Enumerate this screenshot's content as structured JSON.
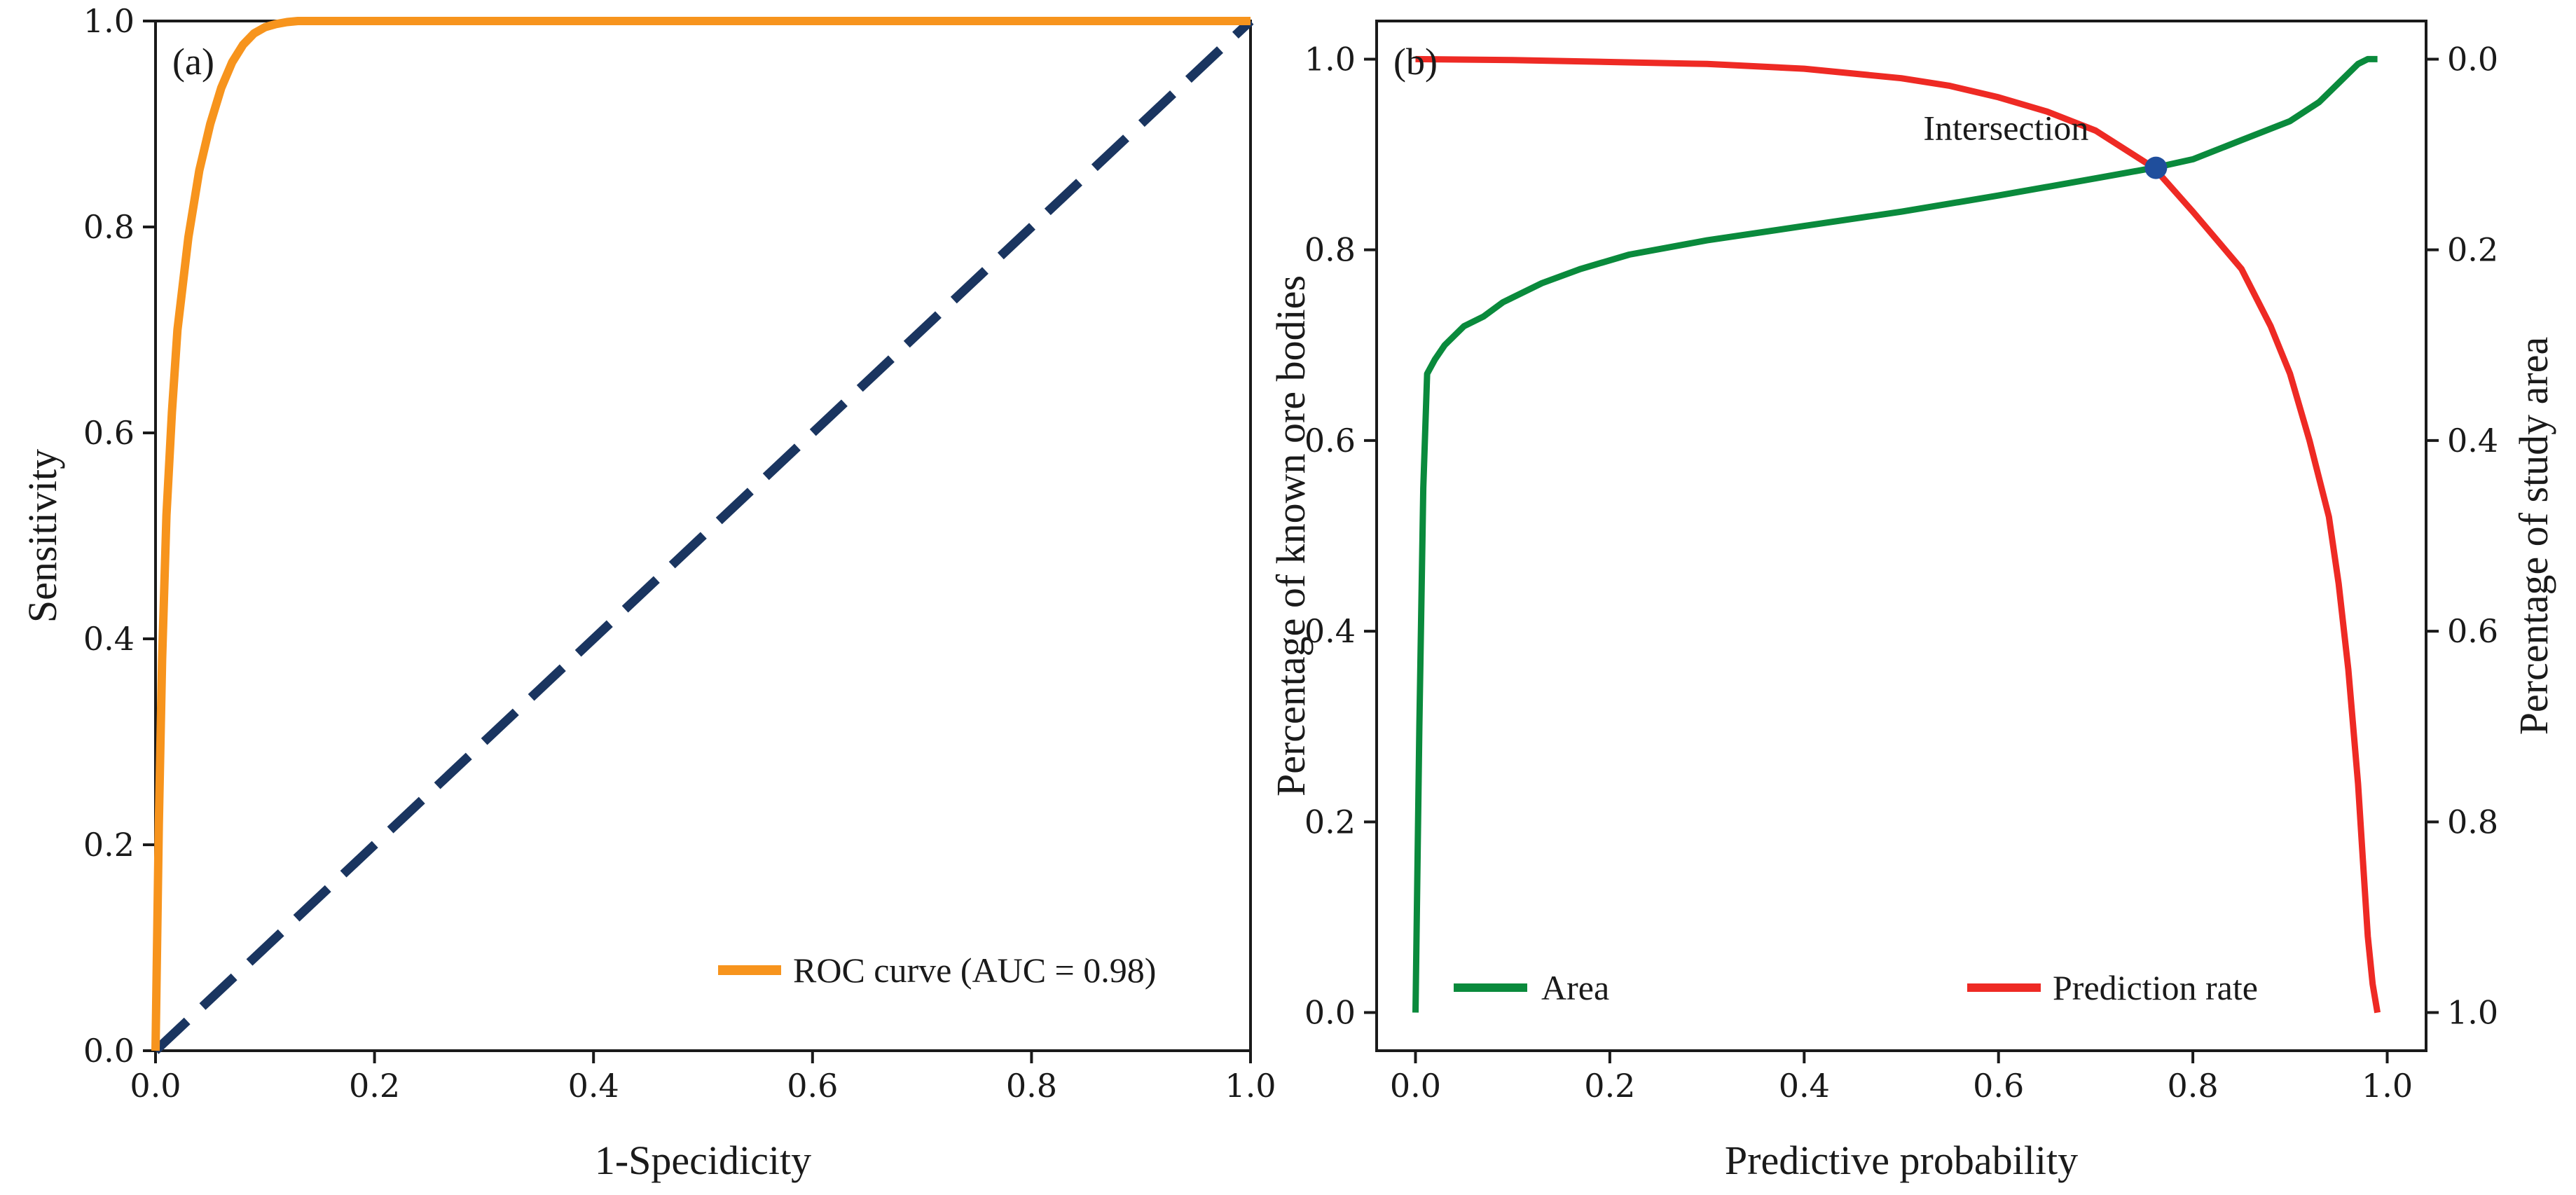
{
  "chart_data": [
    {
      "type": "line",
      "panel_label": "(a)",
      "xlabel": "1-Specidicity",
      "ylabel": "Sensitivity",
      "xlim": [
        0.0,
        1.0
      ],
      "ylim": [
        0.0,
        1.0
      ],
      "xticks": [
        "0.0",
        "0.2",
        "0.4",
        "0.6",
        "0.8",
        "1.0"
      ],
      "yticks": [
        "0.0",
        "0.2",
        "0.4",
        "0.6",
        "0.8",
        "1.0"
      ],
      "grid": false,
      "legend_position": "bottom-right",
      "series": [
        {
          "name": "ROC curve (AUC = 0.98)",
          "color": "#f7941d",
          "style": "solid",
          "x": [
            0.0,
            0.003,
            0.006,
            0.01,
            0.015,
            0.02,
            0.03,
            0.04,
            0.05,
            0.06,
            0.07,
            0.08,
            0.09,
            0.1,
            0.11,
            0.12,
            0.13,
            0.15,
            0.2,
            0.3,
            0.5,
            0.7,
            1.0
          ],
          "y": [
            0.0,
            0.22,
            0.38,
            0.52,
            0.62,
            0.7,
            0.79,
            0.855,
            0.9,
            0.935,
            0.96,
            0.977,
            0.988,
            0.994,
            0.997,
            0.999,
            1.0,
            1.0,
            1.0,
            1.0,
            1.0,
            1.0,
            1.0
          ]
        },
        {
          "name": "",
          "color": "#1a3560",
          "style": "dashed",
          "x": [
            0.0,
            1.0
          ],
          "y": [
            0.0,
            1.0
          ]
        }
      ]
    },
    {
      "type": "line",
      "panel_label": "(b)",
      "xlabel": "Predictive probability",
      "ylabel": "Percentage of known ore bodies",
      "ylabel_right": "Percentage of study area",
      "xlim": [
        -0.04,
        1.04
      ],
      "ylim": [
        -0.04,
        1.04
      ],
      "ylim_right": [
        1.04,
        -0.04
      ],
      "xticks": [
        "0.0",
        "0.2",
        "0.4",
        "0.6",
        "0.8",
        "1.0"
      ],
      "yticks": [
        "0.0",
        "0.2",
        "0.4",
        "0.6",
        "0.8",
        "1.0"
      ],
      "yticks_right": [
        "0.0",
        "0.2",
        "0.4",
        "0.6",
        "0.8",
        "1.0"
      ],
      "grid": false,
      "legend_position": "bottom",
      "annotation": {
        "text": "Intersection",
        "x": 0.762,
        "y": 0.886,
        "marker_color": "#1f4e9c"
      },
      "series": [
        {
          "name": "Area",
          "color": "#0a8a3c",
          "axis": "left",
          "x": [
            0.0,
            0.004,
            0.008,
            0.012,
            0.02,
            0.03,
            0.05,
            0.07,
            0.09,
            0.1,
            0.13,
            0.17,
            0.22,
            0.3,
            0.4,
            0.5,
            0.6,
            0.7,
            0.76,
            0.8,
            0.85,
            0.9,
            0.93,
            0.95,
            0.97,
            0.98,
            0.99
          ],
          "y": [
            0.0,
            0.3,
            0.55,
            0.67,
            0.685,
            0.7,
            0.72,
            0.73,
            0.745,
            0.75,
            0.765,
            0.78,
            0.795,
            0.81,
            0.825,
            0.84,
            0.857,
            0.875,
            0.886,
            0.895,
            0.915,
            0.935,
            0.955,
            0.975,
            0.995,
            1.0,
            1.0
          ]
        },
        {
          "name": "Prediction rate",
          "color": "#ee2a24",
          "axis": "right",
          "x": [
            0.0,
            0.1,
            0.2,
            0.3,
            0.4,
            0.5,
            0.55,
            0.6,
            0.65,
            0.7,
            0.76,
            0.8,
            0.85,
            0.88,
            0.9,
            0.92,
            0.94,
            0.95,
            0.96,
            0.97,
            0.975,
            0.98,
            0.985,
            0.99
          ],
          "y": [
            0.0,
            0.001,
            0.003,
            0.005,
            0.01,
            0.02,
            0.028,
            0.04,
            0.055,
            0.075,
            0.114,
            0.16,
            0.22,
            0.28,
            0.33,
            0.4,
            0.48,
            0.55,
            0.64,
            0.76,
            0.84,
            0.92,
            0.97,
            1.0
          ]
        }
      ]
    }
  ]
}
